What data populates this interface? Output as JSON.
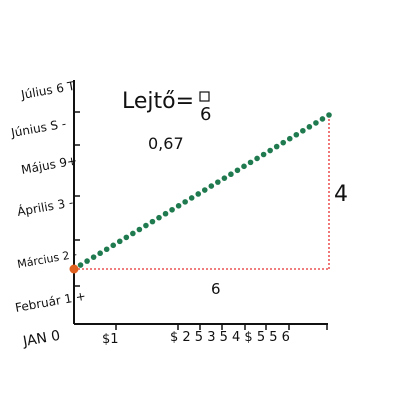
{
  "chart_data": {
    "type": "line",
    "title": "Lejtő=",
    "title_fraction_denominator": "6",
    "slope_value": "0,67",
    "y_tick_labels": [
      "JAN 0",
      "Február 1 +",
      "Március 2 -",
      "Április 3 -",
      "Május 9+",
      "Június S -",
      "Július 6 T"
    ],
    "x_tick_labels": [
      "$1",
      "$ 2 5 3 5 4 $ 5 5 6"
    ],
    "run_label": "6",
    "rise_label": "4",
    "start_point": {
      "x": 0,
      "y": 1
    },
    "series": [
      {
        "values": {
          "x_start": 0,
          "y_start": 1,
          "x_end": 6,
          "y_end": 5,
          "dot_count": 40
        }
      }
    ],
    "colors": {
      "line": "#1f7a4f",
      "start_point": "#e06020",
      "guide": "#e83030",
      "axis": "#111111"
    },
    "grid": false
  }
}
